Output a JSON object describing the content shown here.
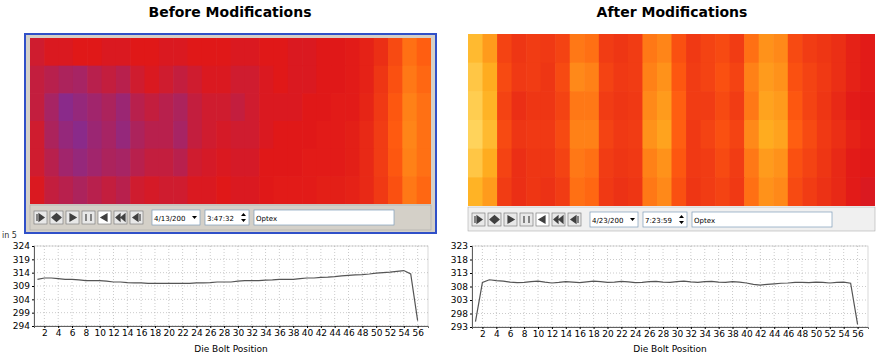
{
  "chart_data": [
    {
      "type": "line",
      "title": "Before Modifications",
      "x_label": "Die Bolt Position",
      "annotations": [
        "4/13/200",
        "3:47:32",
        "Optex",
        "in 5"
      ],
      "grid": true,
      "color": "#555555",
      "xlim": [
        0.5,
        57.5
      ],
      "xticks": [
        2,
        4,
        6,
        8,
        10,
        12,
        14,
        16,
        18,
        20,
        22,
        24,
        26,
        28,
        30,
        32,
        34,
        36,
        38,
        40,
        42,
        44,
        46,
        48,
        50,
        52,
        54,
        56
      ],
      "ylim": [
        294,
        324
      ],
      "yticks": [
        294,
        299,
        304,
        309,
        314,
        319,
        324
      ],
      "x": [
        1,
        2,
        3,
        4,
        5,
        6,
        7,
        8,
        9,
        10,
        11,
        12,
        13,
        14,
        15,
        16,
        17,
        18,
        19,
        20,
        21,
        22,
        23,
        24,
        25,
        26,
        27,
        28,
        29,
        30,
        31,
        32,
        33,
        34,
        35,
        36,
        37,
        38,
        39,
        40,
        41,
        42,
        43,
        44,
        45,
        46,
        47,
        48,
        49,
        50,
        51,
        52,
        53,
        54,
        55,
        56
      ],
      "values": [
        311.5,
        312,
        312,
        311.8,
        311.5,
        311.5,
        311.3,
        311,
        311,
        311,
        310.8,
        310.5,
        310.5,
        310.3,
        310.2,
        310.2,
        310,
        310,
        310,
        310,
        310,
        310,
        310,
        310.2,
        310.2,
        310.3,
        310.5,
        310.5,
        310.5,
        310.8,
        311,
        311,
        311,
        311.2,
        311.3,
        311.5,
        311.5,
        311.5,
        311.8,
        312,
        312,
        312.2,
        312.3,
        312.5,
        312.8,
        313,
        313.2,
        313.3,
        313.5,
        313.8,
        314,
        314.2,
        314.5,
        314.8,
        313.5,
        296
      ],
      "heatmap": {
        "zlim": [
          0,
          100
        ],
        "values": [
          [
            42,
            44,
            44,
            45,
            45,
            44,
            44,
            45,
            45,
            44,
            44,
            45,
            45,
            45,
            44,
            44,
            45,
            45,
            44,
            44,
            45,
            45,
            46,
            48,
            52,
            60,
            70,
            66
          ],
          [
            40,
            38,
            36,
            35,
            38,
            40,
            38,
            42,
            44,
            42,
            40,
            42,
            44,
            44,
            42,
            42,
            44,
            45,
            44,
            44,
            45,
            45,
            46,
            48,
            54,
            62,
            72,
            68
          ],
          [
            40,
            35,
            30,
            32,
            34,
            36,
            33,
            38,
            40,
            38,
            36,
            40,
            42,
            42,
            40,
            42,
            44,
            44,
            44,
            45,
            45,
            46,
            46,
            49,
            55,
            64,
            74,
            70
          ],
          [
            42,
            36,
            32,
            30,
            33,
            35,
            32,
            36,
            38,
            38,
            35,
            40,
            42,
            43,
            42,
            42,
            44,
            45,
            45,
            45,
            46,
            46,
            47,
            50,
            56,
            65,
            75,
            70
          ],
          [
            42,
            38,
            34,
            32,
            34,
            36,
            35,
            38,
            40,
            40,
            38,
            42,
            43,
            44,
            43,
            43,
            45,
            45,
            45,
            46,
            46,
            46,
            47,
            50,
            56,
            64,
            74,
            70
          ],
          [
            44,
            40,
            38,
            36,
            38,
            40,
            38,
            42,
            43,
            42,
            42,
            44,
            44,
            45,
            44,
            44,
            45,
            46,
            46,
            46,
            47,
            47,
            48,
            50,
            55,
            62,
            72,
            68
          ]
        ]
      }
    },
    {
      "type": "line",
      "title": "After Modifications",
      "x_label": "Die Bolt Position",
      "annotations": [
        "4/23/200",
        "7:23:59",
        "Optex"
      ],
      "grid": true,
      "color": "#555555",
      "xlim": [
        0.5,
        57.5
      ],
      "xticks": [
        2,
        4,
        6,
        8,
        10,
        12,
        14,
        16,
        18,
        20,
        22,
        24,
        26,
        28,
        30,
        32,
        34,
        36,
        38,
        40,
        42,
        44,
        46,
        48,
        50,
        52,
        54,
        56
      ],
      "ylim": [
        293,
        323
      ],
      "yticks": [
        293,
        298,
        303,
        308,
        313,
        318,
        323
      ],
      "x": [
        1,
        2,
        3,
        4,
        5,
        6,
        7,
        8,
        9,
        10,
        11,
        12,
        13,
        14,
        15,
        16,
        17,
        18,
        19,
        20,
        21,
        22,
        23,
        24,
        25,
        26,
        27,
        28,
        29,
        30,
        31,
        32,
        33,
        34,
        35,
        36,
        37,
        38,
        39,
        40,
        41,
        42,
        43,
        44,
        45,
        46,
        47,
        48,
        49,
        50,
        51,
        52,
        53,
        54,
        55,
        56
      ],
      "values": [
        295,
        309.5,
        310.5,
        310.2,
        310,
        309.6,
        309.4,
        309.5,
        309.8,
        310,
        309.6,
        309.3,
        309.5,
        309.8,
        309.6,
        309.4,
        309.7,
        310,
        309.8,
        309.5,
        309.6,
        309.9,
        309.7,
        309.4,
        309.5,
        309.8,
        309.9,
        309.6,
        309.5,
        309.8,
        310,
        309.7,
        309.5,
        309.8,
        309.9,
        309.6,
        309.5,
        309.8,
        309.6,
        309.3,
        308.8,
        308.5,
        308.8,
        309,
        309.2,
        309.3,
        309.5,
        309.5,
        309.4,
        309.6,
        309.5,
        309.3,
        309.5,
        309.6,
        309.2,
        294
      ],
      "heatmap": {
        "zlim": [
          0,
          100
        ],
        "values": [
          [
            88,
            80,
            58,
            54,
            56,
            55,
            58,
            72,
            70,
            56,
            54,
            56,
            72,
            75,
            62,
            55,
            58,
            60,
            56,
            70,
            78,
            76,
            60,
            56,
            54,
            52,
            48,
            46
          ],
          [
            92,
            84,
            60,
            55,
            56,
            54,
            60,
            76,
            74,
            58,
            55,
            56,
            74,
            78,
            64,
            56,
            58,
            62,
            58,
            74,
            80,
            78,
            62,
            58,
            55,
            52,
            48,
            46
          ],
          [
            94,
            86,
            58,
            52,
            54,
            54,
            58,
            72,
            72,
            56,
            54,
            55,
            76,
            80,
            66,
            56,
            56,
            60,
            56,
            72,
            82,
            80,
            64,
            58,
            54,
            50,
            46,
            45
          ],
          [
            96,
            88,
            60,
            54,
            55,
            55,
            60,
            74,
            74,
            58,
            55,
            56,
            78,
            82,
            66,
            55,
            58,
            62,
            58,
            76,
            84,
            82,
            66,
            60,
            55,
            52,
            48,
            46
          ],
          [
            92,
            84,
            58,
            52,
            54,
            54,
            58,
            72,
            70,
            56,
            54,
            55,
            74,
            78,
            64,
            55,
            56,
            60,
            56,
            72,
            80,
            78,
            62,
            58,
            54,
            50,
            46,
            45
          ],
          [
            86,
            80,
            56,
            52,
            54,
            53,
            56,
            70,
            68,
            55,
            53,
            54,
            72,
            76,
            62,
            54,
            56,
            58,
            55,
            70,
            78,
            76,
            60,
            56,
            53,
            50,
            46,
            44
          ]
        ]
      }
    }
  ]
}
